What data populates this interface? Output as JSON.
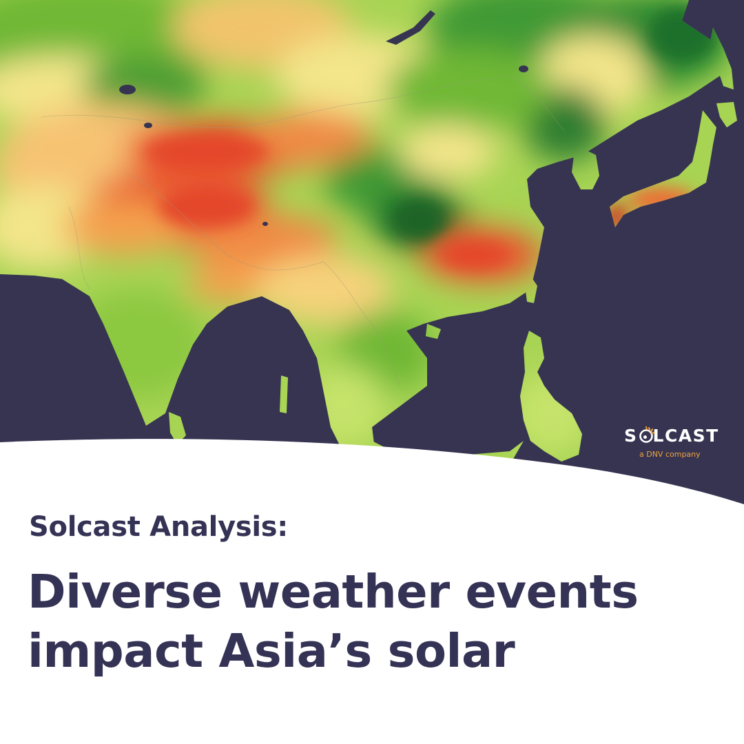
{
  "brand": {
    "name": "SOLCAST",
    "name_part1": "S",
    "name_part2": "LCAST",
    "tagline": "a DNV company",
    "logo_icon": "sun-icon"
  },
  "heading": {
    "kicker": "Solcast Analysis:",
    "line1": "Diverse weather events",
    "line2": "impact Asia’s solar"
  },
  "map": {
    "subject": "Asia solar irradiance anomaly",
    "colors": {
      "ocean": "#363451",
      "dark_green": "#2f8a32",
      "green": "#7ec33c",
      "light_green": "#c6e36a",
      "yellow": "#f3e58a",
      "orange": "#f4a04e",
      "red": "#e4472a",
      "text": "#353355",
      "logo_accent": "#f0a540"
    }
  }
}
